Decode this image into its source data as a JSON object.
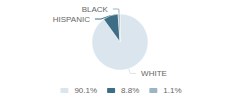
{
  "chart_data": {
    "type": "pie",
    "categories": [
      "WHITE",
      "HISPANIC",
      "BLACK"
    ],
    "values": [
      90.1,
      8.8,
      1.1
    ],
    "value_labels": [
      "90.1%",
      "8.8%",
      "1.1%"
    ],
    "colors": [
      "#dae5ed",
      "#3d6e85",
      "#9bb5c5"
    ],
    "legend": "bottom"
  }
}
